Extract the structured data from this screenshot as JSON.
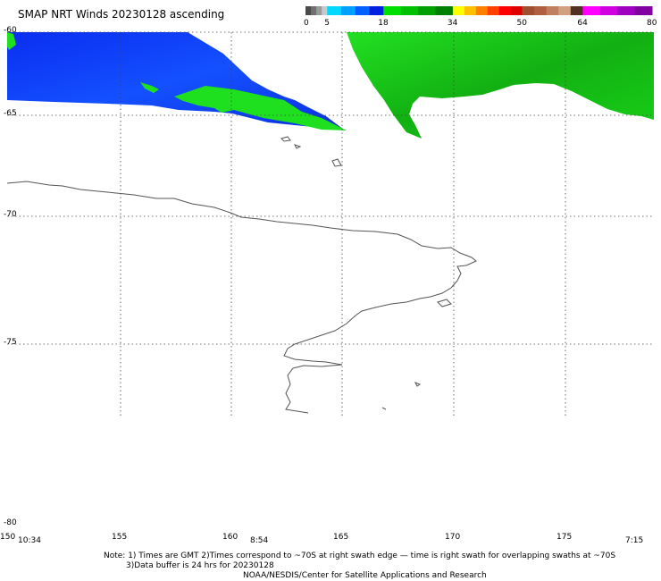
{
  "title": "SMAP NRT Winds 20230128 ascending",
  "colorbar": {
    "labels": [
      "0",
      "5",
      "18",
      "34",
      "50",
      "64",
      "80"
    ],
    "segments": [
      {
        "from": 0,
        "to": 5,
        "colors": [
          "#4a4a4a",
          "#6f6f6f",
          "#9a9a9a",
          "#c8c8c8"
        ]
      },
      {
        "from": 5,
        "to": 18,
        "colors": [
          "#00d8ff",
          "#00a0ff",
          "#0060ff",
          "#0020e0"
        ]
      },
      {
        "from": 18,
        "to": 34,
        "colors": [
          "#00e000",
          "#00c000",
          "#00a000",
          "#008000"
        ]
      },
      {
        "from": 34,
        "to": 50,
        "colors": [
          "#ffff00",
          "#ffc000",
          "#ff8000",
          "#ff4000",
          "#ff0000",
          "#e00000"
        ]
      },
      {
        "from": 50,
        "to": 64,
        "colors": [
          "#a05030",
          "#b06040",
          "#c08060",
          "#d0a080",
          "#503020"
        ]
      },
      {
        "from": 64,
        "to": 80,
        "colors": [
          "#ff00ff",
          "#d000e0",
          "#a000c0",
          "#8000a0"
        ]
      }
    ]
  },
  "map": {
    "lat_labels": [
      "-60",
      "-65",
      "-70",
      "-75",
      "-80"
    ],
    "lon_labels": [
      "150",
      "155",
      "160",
      "165",
      "170",
      "175"
    ],
    "lat_values": [
      -60,
      -65,
      -70,
      -75,
      -80
    ],
    "lon_values": [
      150,
      155,
      160,
      165,
      170,
      175
    ],
    "lat_range": [
      -60,
      -80
    ],
    "lon_range": [
      150,
      180
    ],
    "gridlines": true,
    "wind_colors": {
      "blue": "#0a3cf0",
      "green": "#1ee01e",
      "coast": "#555555",
      "grid": "#333333"
    }
  },
  "times": [
    "10:34",
    "8:54",
    "7:15"
  ],
  "notes": {
    "line1": "Note: 1) Times are GMT 2)Times correspond to ~70S at right swath edge — time is right swath for overlapping swaths at ~70S",
    "line2": "3)Data buffer is 24 hrs for 20230128",
    "line3": "NOAA/NESDIS/Center for Satellite Applications and Research"
  }
}
